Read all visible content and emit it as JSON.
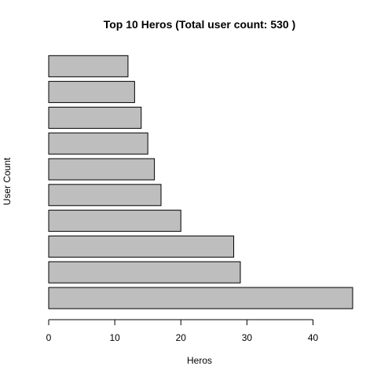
{
  "chart_data": {
    "type": "bar",
    "orientation": "horizontal",
    "title": "Top 10 Heros (Total user count: 530 )",
    "xlabel": "Heros",
    "ylabel": "User Count",
    "values": [
      46,
      29,
      28,
      20,
      17,
      16,
      15,
      14,
      13,
      12
    ],
    "xlim": [
      0,
      46
    ],
    "xticks": [
      0,
      10,
      20,
      30,
      40
    ],
    "bar_color": "#bebebe",
    "grid": false,
    "legend": "none"
  }
}
